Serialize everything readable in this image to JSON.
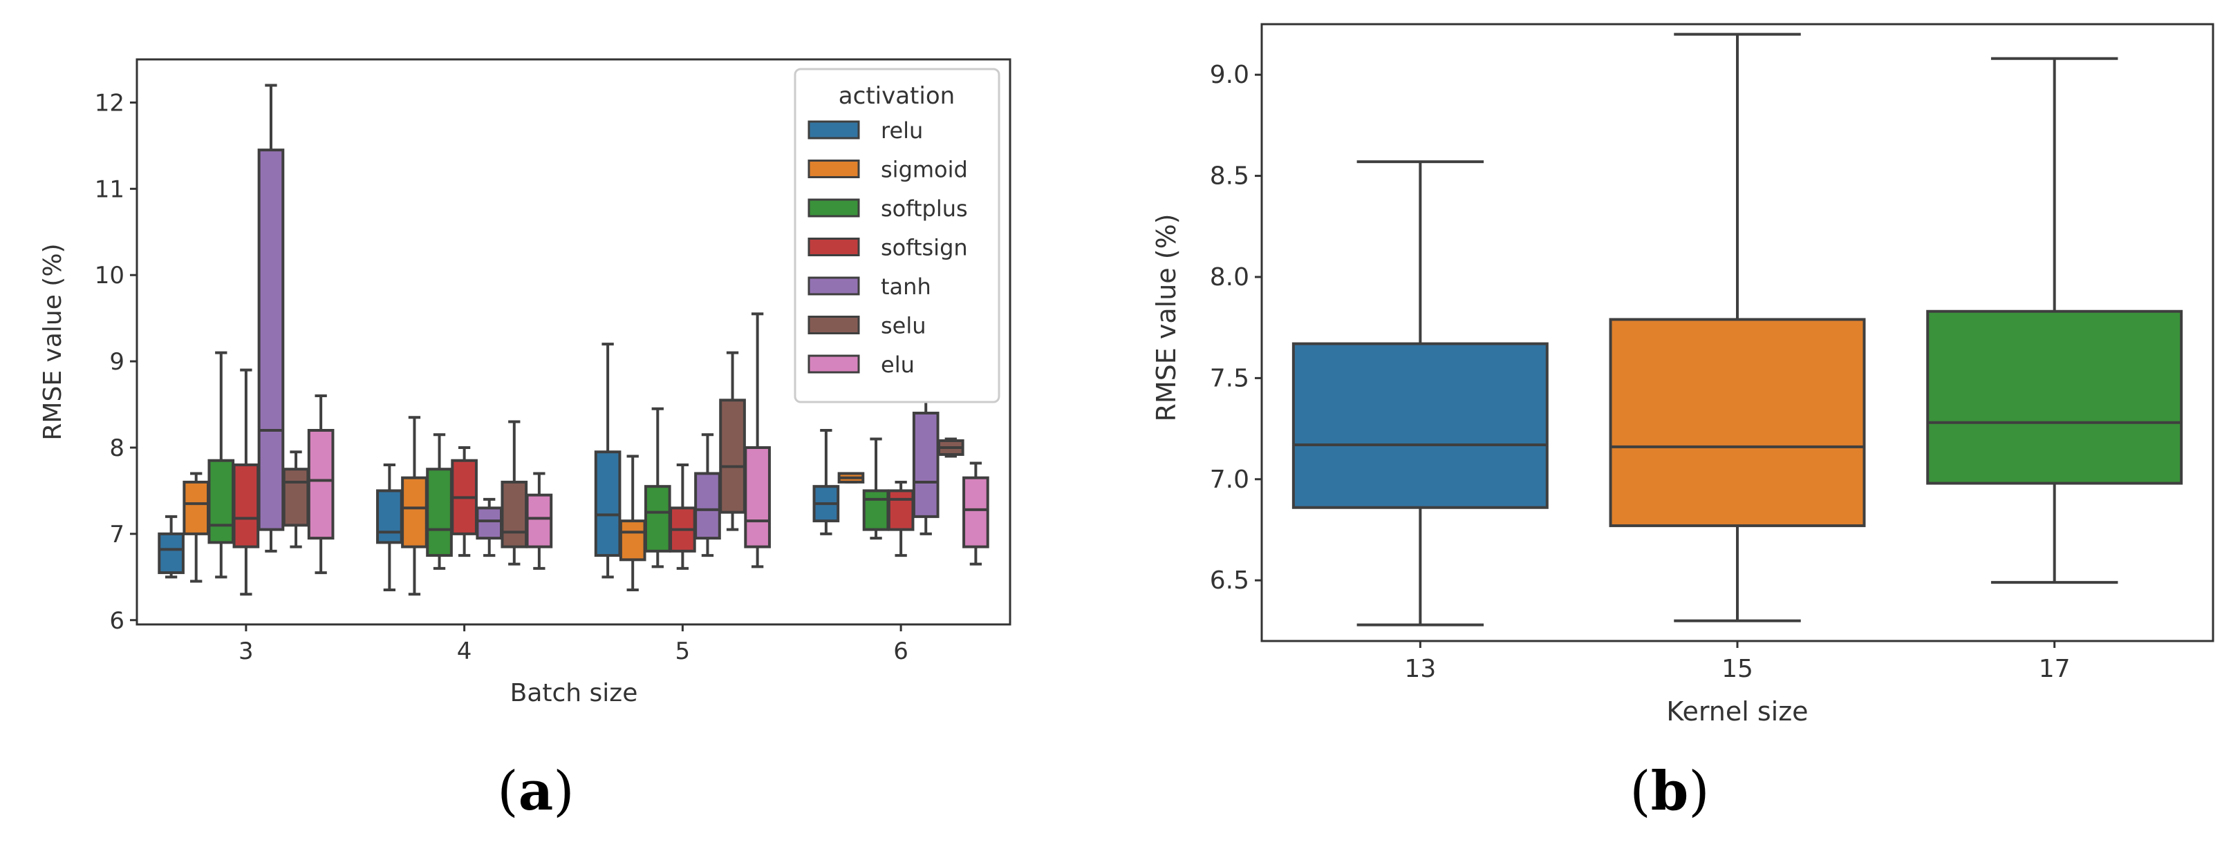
{
  "chart_data": [
    {
      "id": "a",
      "type": "boxplot",
      "panel_label": {
        "open": "(",
        "letter": "a",
        "close": ")"
      },
      "xlabel": "Batch size",
      "ylabel": "RMSE value (%)",
      "categories": [
        "3",
        "4",
        "5",
        "6"
      ],
      "ylim": [
        5.95,
        12.5
      ],
      "yticks": [
        6,
        7,
        8,
        9,
        10,
        11,
        12
      ],
      "legend": {
        "title": "activation",
        "position": "top-right",
        "entries": [
          {
            "name": "relu",
            "color": "#3274a1"
          },
          {
            "name": "sigmoid",
            "color": "#e1812c"
          },
          {
            "name": "softplus",
            "color": "#3a923a"
          },
          {
            "name": "softsign",
            "color": "#c03d3e"
          },
          {
            "name": "tanh",
            "color": "#9372b2"
          },
          {
            "name": "selu",
            "color": "#845b53"
          },
          {
            "name": "elu",
            "color": "#d684bd"
          }
        ]
      },
      "series": [
        {
          "name": "relu",
          "boxes": [
            {
              "min": 6.5,
              "q1": 6.55,
              "median": 6.82,
              "q3": 7.0,
              "max": 7.2
            },
            {
              "min": 6.35,
              "q1": 6.9,
              "median": 7.02,
              "q3": 7.5,
              "max": 7.8
            },
            {
              "min": 6.5,
              "q1": 6.75,
              "median": 7.22,
              "q3": 7.95,
              "max": 9.2
            },
            {
              "min": 7.0,
              "q1": 7.15,
              "median": 7.35,
              "q3": 7.55,
              "max": 8.2
            }
          ]
        },
        {
          "name": "sigmoid",
          "boxes": [
            {
              "min": 6.45,
              "q1": 7.0,
              "median": 7.35,
              "q3": 7.6,
              "max": 7.7
            },
            {
              "min": 6.3,
              "q1": 6.85,
              "median": 7.3,
              "q3": 7.65,
              "max": 8.35
            },
            {
              "min": 6.35,
              "q1": 6.7,
              "median": 7.02,
              "q3": 7.15,
              "max": 7.9
            },
            {
              "min": 7.6,
              "q1": 7.6,
              "median": 7.65,
              "q3": 7.7,
              "max": 7.7
            }
          ]
        },
        {
          "name": "softplus",
          "boxes": [
            {
              "min": 6.5,
              "q1": 6.9,
              "median": 7.1,
              "q3": 7.85,
              "max": 9.1
            },
            {
              "min": 6.6,
              "q1": 6.75,
              "median": 7.05,
              "q3": 7.75,
              "max": 8.15
            },
            {
              "min": 6.62,
              "q1": 6.8,
              "median": 7.25,
              "q3": 7.55,
              "max": 8.45
            },
            {
              "min": 6.95,
              "q1": 7.05,
              "median": 7.4,
              "q3": 7.5,
              "max": 8.1
            }
          ]
        },
        {
          "name": "softsign",
          "boxes": [
            {
              "min": 6.3,
              "q1": 6.85,
              "median": 7.18,
              "q3": 7.8,
              "max": 8.9
            },
            {
              "min": 6.75,
              "q1": 7.0,
              "median": 7.42,
              "q3": 7.85,
              "max": 8.0
            },
            {
              "min": 6.6,
              "q1": 6.8,
              "median": 7.05,
              "q3": 7.3,
              "max": 7.8
            },
            {
              "min": 6.75,
              "q1": 7.05,
              "median": 7.4,
              "q3": 7.5,
              "max": 7.6
            }
          ]
        },
        {
          "name": "tanh",
          "boxes": [
            {
              "min": 6.8,
              "q1": 7.05,
              "median": 8.2,
              "q3": 11.45,
              "max": 12.2
            },
            {
              "min": 6.75,
              "q1": 6.95,
              "median": 7.15,
              "q3": 7.3,
              "max": 7.4
            },
            {
              "min": 6.75,
              "q1": 6.95,
              "median": 7.28,
              "q3": 7.7,
              "max": 8.15
            },
            {
              "min": 7.0,
              "q1": 7.2,
              "median": 7.6,
              "q3": 8.4,
              "max": 8.55
            }
          ]
        },
        {
          "name": "selu",
          "boxes": [
            {
              "min": 6.85,
              "q1": 7.1,
              "median": 7.6,
              "q3": 7.75,
              "max": 7.95
            },
            {
              "min": 6.65,
              "q1": 6.85,
              "median": 7.02,
              "q3": 7.6,
              "max": 8.3
            },
            {
              "min": 7.05,
              "q1": 7.25,
              "median": 7.78,
              "q3": 8.55,
              "max": 9.1
            },
            {
              "min": 7.9,
              "q1": 7.92,
              "median": 8.0,
              "q3": 8.08,
              "max": 8.1
            }
          ]
        },
        {
          "name": "elu",
          "boxes": [
            {
              "min": 6.55,
              "q1": 6.95,
              "median": 7.62,
              "q3": 8.2,
              "max": 8.6
            },
            {
              "min": 6.6,
              "q1": 6.85,
              "median": 7.18,
              "q3": 7.45,
              "max": 7.7
            },
            {
              "min": 6.62,
              "q1": 6.85,
              "median": 7.15,
              "q3": 8.0,
              "max": 9.55
            },
            {
              "min": 6.65,
              "q1": 6.85,
              "median": 7.28,
              "q3": 7.65,
              "max": 7.82
            }
          ]
        }
      ]
    },
    {
      "id": "b",
      "type": "boxplot",
      "panel_label": {
        "open": "(",
        "letter": "b",
        "close": ")"
      },
      "xlabel": "Kernel size",
      "ylabel": "RMSE value (%)",
      "categories": [
        "13",
        "15",
        "17"
      ],
      "ylim": [
        6.2,
        9.25
      ],
      "yticks": [
        "6.5",
        "7.0",
        "7.5",
        "8.0",
        "8.5",
        "9.0"
      ],
      "colors": [
        "#3274a1",
        "#e1812c",
        "#3a923a"
      ],
      "boxes": [
        {
          "min": 6.28,
          "q1": 6.86,
          "median": 7.17,
          "q3": 7.67,
          "max": 8.57
        },
        {
          "min": 6.3,
          "q1": 6.77,
          "median": 7.16,
          "q3": 7.79,
          "max": 9.2
        },
        {
          "min": 6.49,
          "q1": 6.98,
          "median": 7.28,
          "q3": 7.83,
          "max": 9.08
        }
      ]
    }
  ]
}
